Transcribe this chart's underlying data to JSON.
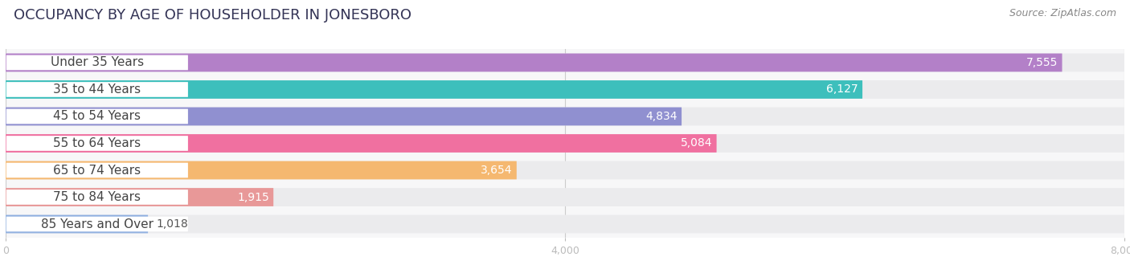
{
  "title": "OCCUPANCY BY AGE OF HOUSEHOLDER IN JONESBORO",
  "source": "Source: ZipAtlas.com",
  "categories": [
    "Under 35 Years",
    "35 to 44 Years",
    "45 to 54 Years",
    "55 to 64 Years",
    "65 to 74 Years",
    "75 to 84 Years",
    "85 Years and Over"
  ],
  "values": [
    7555,
    6127,
    4834,
    5084,
    3654,
    1915,
    1018
  ],
  "bar_colors": [
    "#b380c8",
    "#3dbfbc",
    "#9090d0",
    "#f070a0",
    "#f5b870",
    "#e89898",
    "#90b0e0"
  ],
  "bar_bg_colors": [
    "#eeeef5",
    "#eeeef5",
    "#eeeef5",
    "#eeeef5",
    "#eeeef5",
    "#eeeef5",
    "#eeeef5"
  ],
  "xlim": [
    0,
    8000
  ],
  "xticks": [
    0,
    4000,
    8000
  ],
  "background_color": "#ffffff",
  "plot_bg_color": "#f7f7f8",
  "title_fontsize": 13,
  "source_fontsize": 9,
  "label_fontsize": 11,
  "value_fontsize": 10
}
